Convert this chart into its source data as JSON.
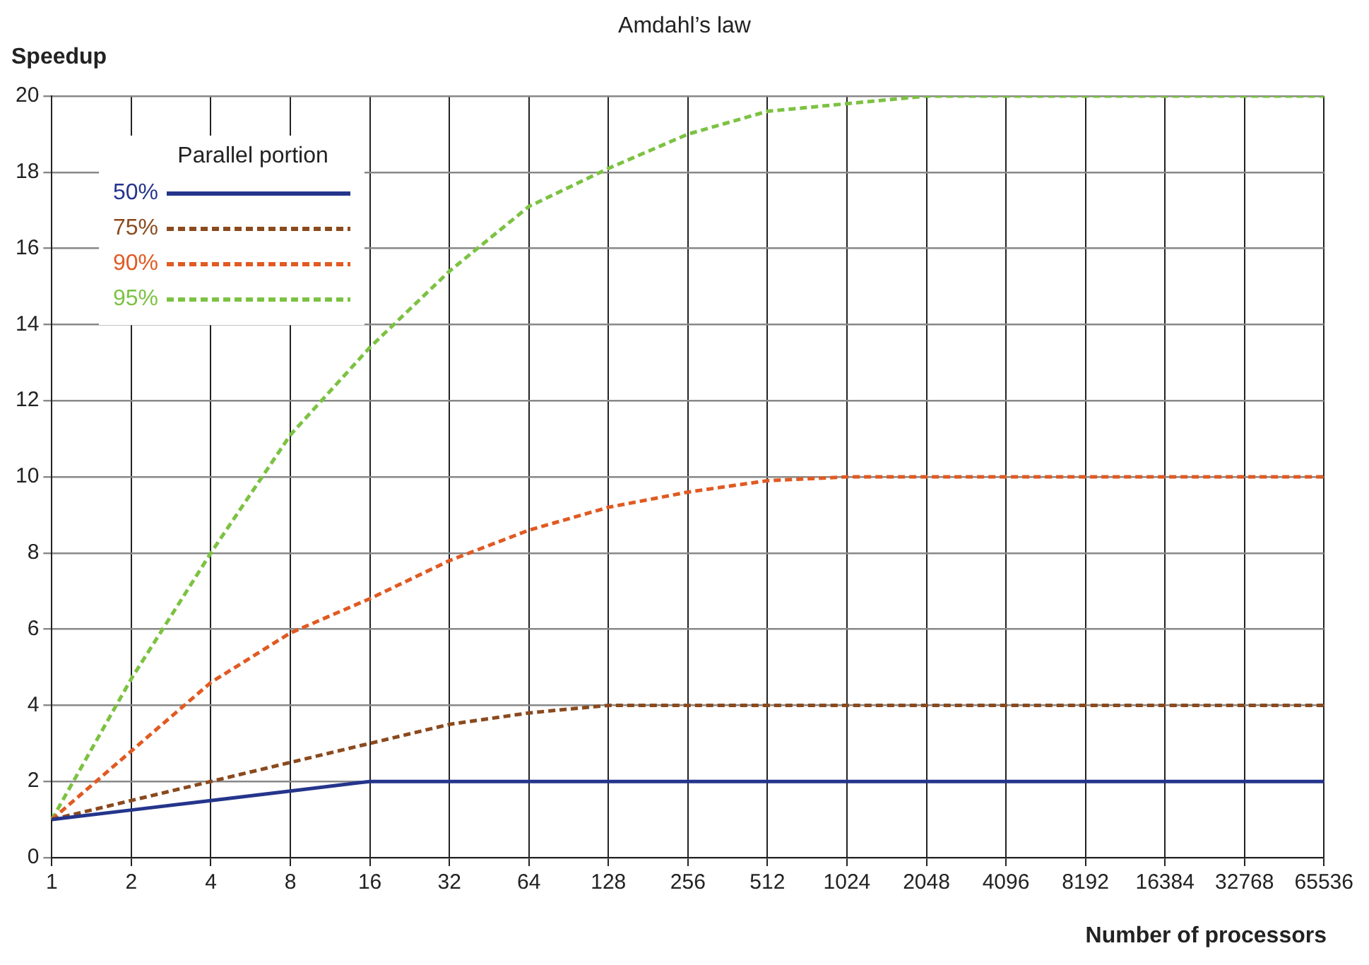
{
  "chart_data": {
    "type": "line",
    "title": "Amdahl’s law",
    "xlabel": "Number of processors",
    "ylabel": "Speedup",
    "legend_title": "Parallel portion",
    "categories": [
      "1",
      "2",
      "4",
      "8",
      "16",
      "32",
      "64",
      "128",
      "256",
      "512",
      "1024",
      "2048",
      "4096",
      "8192",
      "16384",
      "32768",
      "65536"
    ],
    "series": [
      {
        "name": "50%",
        "color": "#25358c",
        "line_style": "solid",
        "values": [
          1,
          1.25,
          1.5,
          1.75,
          2,
          2,
          2,
          2,
          2,
          2,
          2,
          2,
          2,
          2,
          2,
          2,
          2
        ]
      },
      {
        "name": "75%",
        "color": "#8a4a1e",
        "line_style": "dashed",
        "values": [
          1,
          1.5,
          2,
          2.5,
          3,
          3.5,
          3.8,
          4,
          4,
          4,
          4,
          4,
          4,
          4,
          4,
          4,
          4
        ]
      },
      {
        "name": "90%",
        "color": "#e05a22",
        "line_style": "dashed",
        "values": [
          1,
          2.8,
          4.6,
          5.9,
          6.8,
          7.8,
          8.6,
          9.2,
          9.6,
          9.9,
          10,
          10,
          10,
          10,
          10,
          10,
          10
        ]
      },
      {
        "name": "95%",
        "color": "#7cc242",
        "line_style": "dashed",
        "values": [
          1,
          4.7,
          8,
          11.1,
          13.4,
          15.4,
          17.1,
          18.1,
          19,
          19.6,
          19.8,
          20,
          20,
          20,
          20,
          20,
          20
        ]
      }
    ],
    "ylim": [
      0,
      20
    ],
    "yticks": [
      0,
      2,
      4,
      6,
      8,
      10,
      12,
      14,
      16,
      18,
      20
    ],
    "grid": true,
    "legend": "top left",
    "marker": "none"
  }
}
